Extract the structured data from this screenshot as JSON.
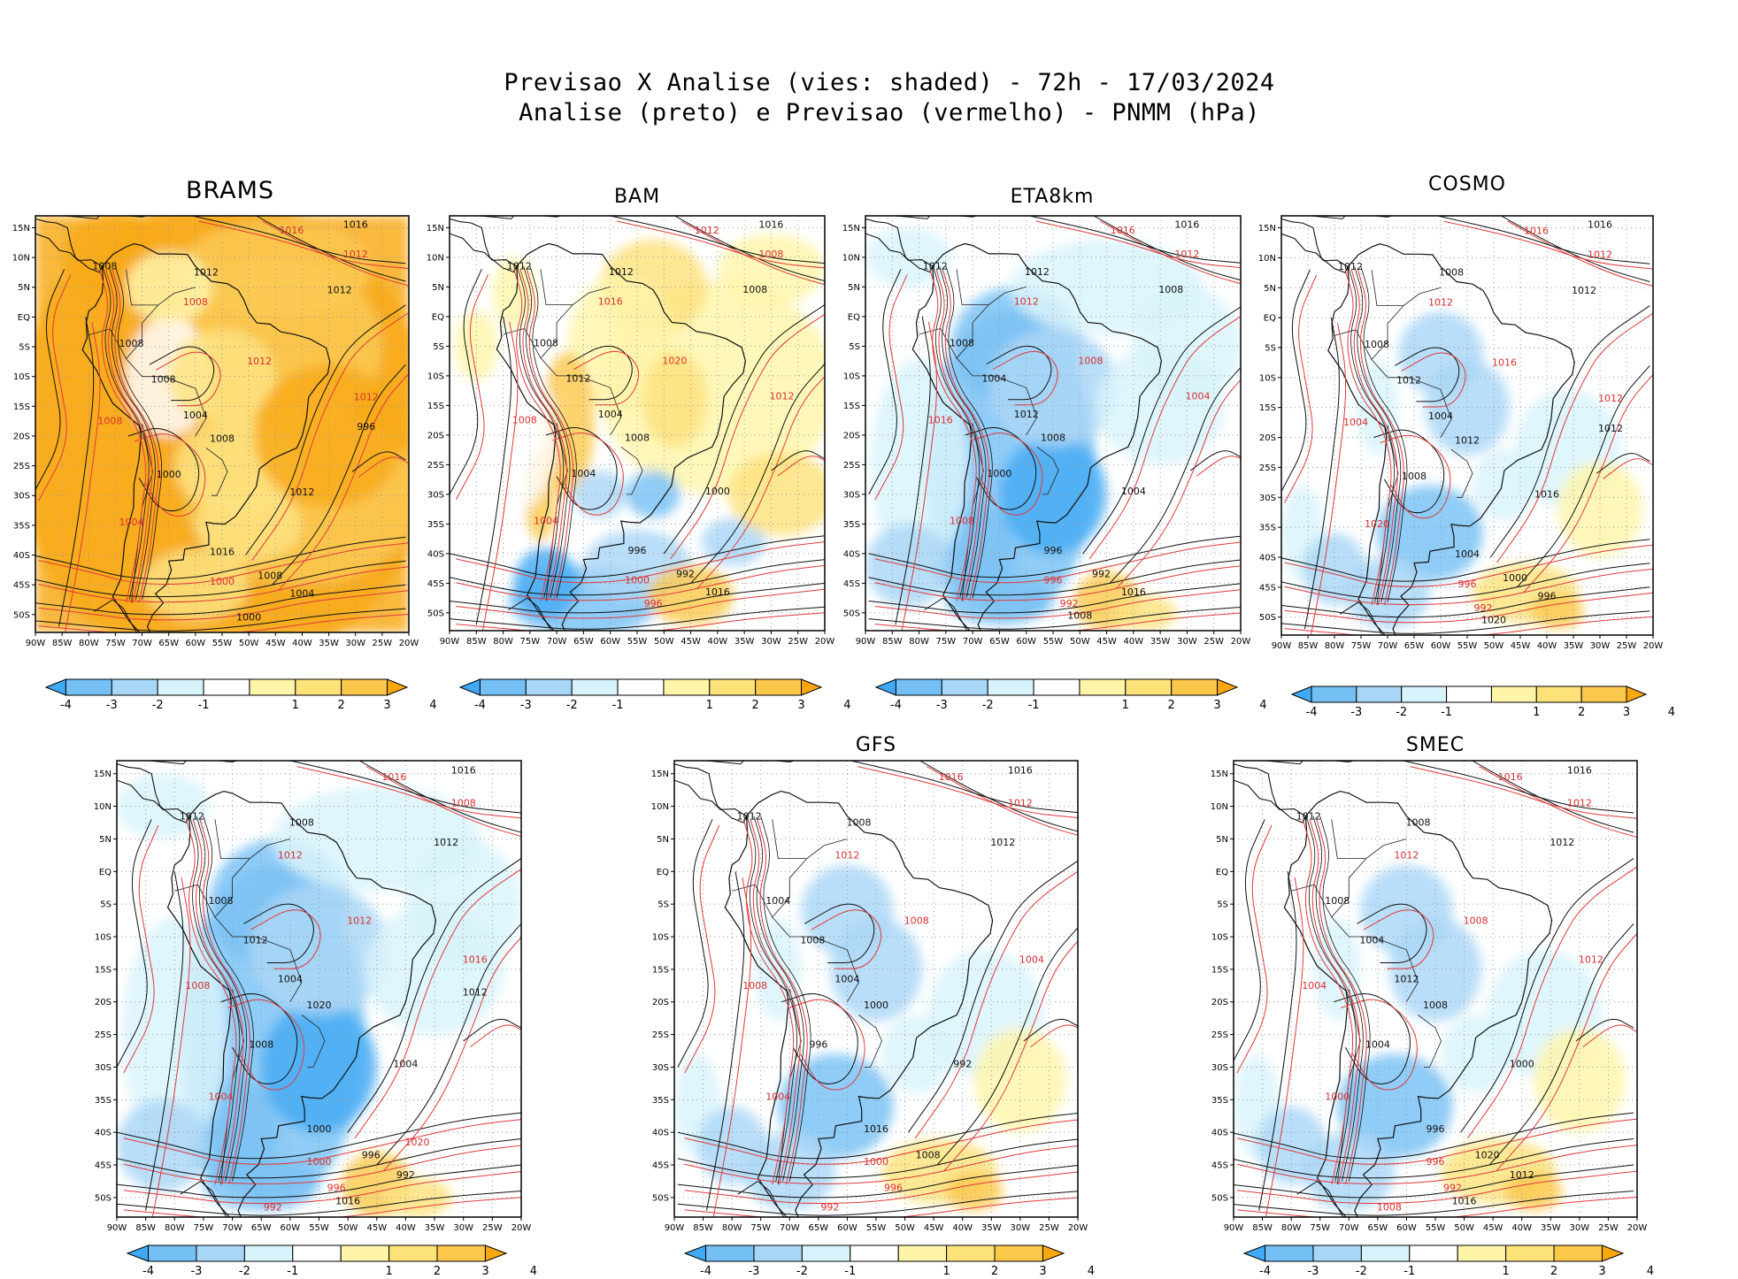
{
  "title": {
    "line1": "Previsao X Analise (vies: shaded) - 72h - 17/03/2024",
    "line2": "Analise (preto) e Previsao (vermelho) - PNMM (hPa)"
  },
  "axes": {
    "lat_labels": [
      "15N",
      "10N",
      "5N",
      "EQ",
      "5S",
      "10S",
      "15S",
      "20S",
      "25S",
      "30S",
      "35S",
      "40S",
      "45S",
      "50S"
    ],
    "lon_labels": [
      "90W",
      "85W",
      "80W",
      "75W",
      "70W",
      "65W",
      "60W",
      "55W",
      "50W",
      "45W",
      "40W",
      "35W",
      "30W",
      "25W",
      "20W"
    ]
  },
  "colorbar": {
    "labels": [
      "-4",
      "-3",
      "-2",
      "-1",
      "1",
      "2",
      "3",
      "4"
    ],
    "colors": [
      "#3fa9f5",
      "#74c0f5",
      "#a8d6f7",
      "#d7f3fb",
      "#ffffff",
      "#fff5a8",
      "#fde27a",
      "#fcc84b",
      "#f8a70f"
    ]
  },
  "panels": [
    {
      "id": "brams",
      "title": "BRAMS",
      "bias": "warm",
      "isobars": {
        "black": [
          "1016",
          "1008",
          "1012",
          "1012",
          "1008",
          "1008",
          "1004",
          "1008",
          "1000",
          "1012",
          "1016",
          "1008",
          "1004",
          "1000",
          "996"
        ],
        "red": [
          "1016",
          "1012",
          "1008",
          "1012",
          "1012",
          "1008",
          "1004",
          "1000"
        ]
      }
    },
    {
      "id": "bam",
      "title": "BAM",
      "bias": "mixed-warm",
      "isobars": {
        "black": [
          "1016",
          "1012",
          "1012",
          "1008",
          "1008",
          "1012",
          "1004",
          "1008",
          "1004",
          "1000",
          "996",
          "992",
          "1016"
        ],
        "red": [
          "1012",
          "1008",
          "1016",
          "1020",
          "1012",
          "1008",
          "1004",
          "1000",
          "996"
        ]
      }
    },
    {
      "id": "eta8km",
      "title": "ETA8km",
      "bias": "cold",
      "isobars": {
        "black": [
          "1016",
          "1012",
          "1012",
          "1008",
          "1008",
          "1004",
          "1012",
          "1008",
          "1000",
          "1004",
          "996",
          "992",
          "1016",
          "1008"
        ],
        "red": [
          "1016",
          "1012",
          "1012",
          "1008",
          "1004",
          "1016",
          "1008",
          "996",
          "992"
        ]
      }
    },
    {
      "id": "cosmo",
      "title": "COSMO",
      "bias": "cold-light",
      "isobars": {
        "black": [
          "1016",
          "1012",
          "1008",
          "1012",
          "1008",
          "1012",
          "1004",
          "1012",
          "1008",
          "1016",
          "1004",
          "1000",
          "996",
          "1020",
          "1012"
        ],
        "red": [
          "1016",
          "1012",
          "1012",
          "1016",
          "1012",
          "1004",
          "1020",
          "996",
          "992"
        ]
      }
    },
    {
      "id": "icon",
      "title": "",
      "bias": "cold",
      "isobars": {
        "black": [
          "1016",
          "1012",
          "1008",
          "1012",
          "1008",
          "1012",
          "1004",
          "1020",
          "1008",
          "1004",
          "1000",
          "996",
          "992",
          "1016",
          "1012"
        ],
        "red": [
          "1016",
          "1008",
          "1012",
          "1012",
          "1016",
          "1008",
          "1004",
          "1000",
          "996",
          "992",
          "1020"
        ]
      }
    },
    {
      "id": "gfs",
      "title": "GFS",
      "bias": "cold-light",
      "isobars": {
        "black": [
          "1016",
          "1012",
          "1008",
          "1012",
          "1004",
          "1008",
          "1004",
          "1000",
          "996",
          "992",
          "1016",
          "1008"
        ],
        "red": [
          "1016",
          "1012",
          "1012",
          "1008",
          "1004",
          "1008",
          "1004",
          "1000",
          "996",
          "992"
        ]
      }
    },
    {
      "id": "smec",
      "title": "SMEC",
      "bias": "cold-light",
      "isobars": {
        "black": [
          "1016",
          "1012",
          "1008",
          "1012",
          "1008",
          "1004",
          "1012",
          "1008",
          "1004",
          "1000",
          "996",
          "1020",
          "1012",
          "1016"
        ],
        "red": [
          "1016",
          "1012",
          "1012",
          "1008",
          "1012",
          "1004",
          "1000",
          "996",
          "992",
          "1008"
        ]
      }
    }
  ]
}
